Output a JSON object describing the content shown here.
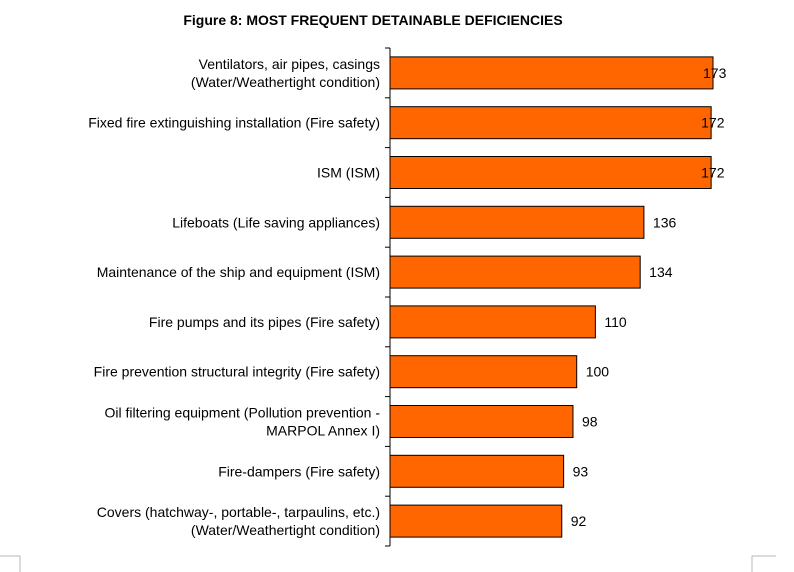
{
  "chart_data": {
    "type": "bar",
    "orientation": "horizontal",
    "title": "Figure 8: MOST FREQUENT DETAINABLE DEFICIENCIES",
    "categories": [
      [
        "Ventilators, air pipes, casings",
        "(Water/Weathertight condition)"
      ],
      [
        "Fixed fire extinguishing installation (Fire safety)"
      ],
      [
        "ISM (ISM)"
      ],
      [
        "Lifeboats (Life saving appliances)"
      ],
      [
        "Maintenance of the ship and equipment (ISM)"
      ],
      [
        "Fire pumps and its pipes (Fire safety)"
      ],
      [
        "Fire prevention structural integrity (Fire safety)"
      ],
      [
        "Oil filtering equipment (Pollution prevention -",
        "MARPOL Annex I)"
      ],
      [
        "Fire-dampers (Fire safety)"
      ],
      [
        "Covers (hatchway-, portable-, tarpaulins, etc.)",
        "(Water/Weathertight condition)"
      ]
    ],
    "values": [
      173,
      172,
      172,
      136,
      134,
      110,
      100,
      98,
      93,
      92
    ],
    "value_labels": [
      "173",
      "172",
      "172",
      "136",
      "134",
      "110",
      "100",
      "98",
      "93",
      "92"
    ],
    "xlim": [
      0,
      173
    ],
    "grid": false,
    "legend": "none",
    "bar_color": "#FF6600",
    "bar_edge_color": "#000000"
  }
}
